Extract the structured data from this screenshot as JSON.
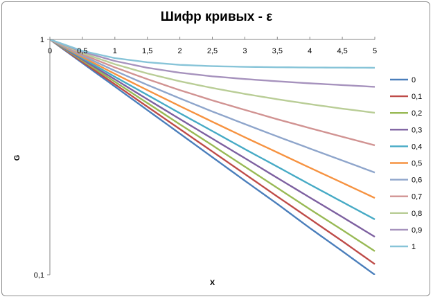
{
  "chart_data": {
    "type": "line",
    "title": "Шифр кривых - ε",
    "xlabel": "X",
    "ylabel": "G",
    "xlim": [
      0,
      5
    ],
    "ylim": [
      0.1,
      1
    ],
    "y_scale": "log",
    "x_ticks": [
      "0",
      "0,5",
      "1",
      "1,5",
      "2",
      "2,5",
      "3",
      "3,5",
      "4",
      "4,5",
      "5"
    ],
    "y_ticks": [
      "0,1",
      "1"
    ],
    "grid": false,
    "legend_position": "right",
    "x": [
      0,
      0.5,
      1,
      1.5,
      2,
      2.5,
      3,
      3.5,
      4,
      4.5,
      5
    ],
    "series": [
      {
        "name": "0",
        "color": "#4a7ebb",
        "values": [
          1,
          0.794,
          0.631,
          0.501,
          0.398,
          0.316,
          0.251,
          0.2,
          0.158,
          0.126,
          0.1
        ]
      },
      {
        "name": "0,1",
        "color": "#be4b48",
        "values": [
          1,
          0.803,
          0.645,
          0.518,
          0.416,
          0.334,
          0.268,
          0.215,
          0.173,
          0.139,
          0.111
        ]
      },
      {
        "name": "0,2",
        "color": "#98b954",
        "values": [
          1,
          0.813,
          0.661,
          0.537,
          0.436,
          0.355,
          0.288,
          0.234,
          0.19,
          0.155,
          0.126
        ]
      },
      {
        "name": "0,3",
        "color": "#7d60a0",
        "values": [
          1,
          0.822,
          0.677,
          0.557,
          0.459,
          0.379,
          0.313,
          0.258,
          0.213,
          0.176,
          0.145
        ]
      },
      {
        "name": "0,4",
        "color": "#46aac5",
        "values": [
          1,
          0.832,
          0.694,
          0.581,
          0.486,
          0.408,
          0.342,
          0.288,
          0.242,
          0.204,
          0.172
        ]
      },
      {
        "name": "0,5",
        "color": "#f69240",
        "values": [
          1,
          0.842,
          0.714,
          0.609,
          0.521,
          0.447,
          0.384,
          0.331,
          0.285,
          0.246,
          0.212
        ]
      },
      {
        "name": "0,6",
        "color": "#8ea5cb",
        "values": [
          1,
          0.853,
          0.736,
          0.641,
          0.562,
          0.494,
          0.437,
          0.387,
          0.344,
          0.306,
          0.272
        ]
      },
      {
        "name": "0,7",
        "color": "#d19392",
        "values": [
          1,
          0.864,
          0.761,
          0.678,
          0.609,
          0.551,
          0.502,
          0.458,
          0.42,
          0.386,
          0.355
        ]
      },
      {
        "name": "0,8",
        "color": "#b9cd96",
        "values": [
          1,
          0.875,
          0.785,
          0.717,
          0.664,
          0.622,
          0.587,
          0.557,
          0.531,
          0.508,
          0.488
        ]
      },
      {
        "name": "0,9",
        "color": "#a692bd",
        "values": [
          1,
          0.886,
          0.81,
          0.758,
          0.722,
          0.697,
          0.679,
          0.664,
          0.651,
          0.64,
          0.629
        ]
      },
      {
        "name": "1",
        "color": "#87c4d8",
        "values": [
          1,
          0.894,
          0.833,
          0.8,
          0.78,
          0.77,
          0.765,
          0.762,
          0.76,
          0.759,
          0.758
        ]
      }
    ]
  }
}
